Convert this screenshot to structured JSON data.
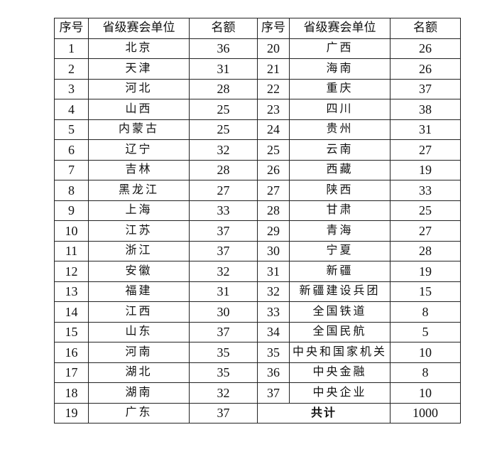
{
  "headers": [
    "序号",
    "省级赛会单位",
    "名额",
    "序号",
    "省级赛会单位",
    "名额"
  ],
  "rows": [
    [
      "1",
      "北京",
      "36",
      "20",
      "广西",
      "26"
    ],
    [
      "2",
      "天津",
      "31",
      "21",
      "海南",
      "26"
    ],
    [
      "3",
      "河北",
      "28",
      "22",
      "重庆",
      "37"
    ],
    [
      "4",
      "山西",
      "25",
      "23",
      "四川",
      "38"
    ],
    [
      "5",
      "内蒙古",
      "25",
      "24",
      "贵州",
      "31"
    ],
    [
      "6",
      "辽宁",
      "32",
      "25",
      "云南",
      "27"
    ],
    [
      "7",
      "吉林",
      "28",
      "26",
      "西藏",
      "19"
    ],
    [
      "8",
      "黑龙江",
      "27",
      "27",
      "陕西",
      "33"
    ],
    [
      "9",
      "上海",
      "33",
      "28",
      "甘肃",
      "25"
    ],
    [
      "10",
      "江苏",
      "37",
      "29",
      "青海",
      "27"
    ],
    [
      "11",
      "浙江",
      "37",
      "30",
      "宁夏",
      "28"
    ],
    [
      "12",
      "安徽",
      "32",
      "31",
      "新疆",
      "19"
    ],
    [
      "13",
      "福建",
      "31",
      "32",
      "新疆建设兵团",
      "15"
    ],
    [
      "14",
      "江西",
      "30",
      "33",
      "全国铁道",
      "8"
    ],
    [
      "15",
      "山东",
      "37",
      "34",
      "全国民航",
      "5"
    ],
    [
      "16",
      "河南",
      "35",
      "35",
      "中央和国家机关",
      "10"
    ],
    [
      "17",
      "湖北",
      "35",
      "36",
      "中央金融",
      "8"
    ],
    [
      "18",
      "湖南",
      "32",
      "37",
      "中央企业",
      "10"
    ]
  ],
  "last_row": {
    "no": "19",
    "unit": "广东",
    "quota": "37",
    "total_label": "共计",
    "total_value": "1000"
  }
}
